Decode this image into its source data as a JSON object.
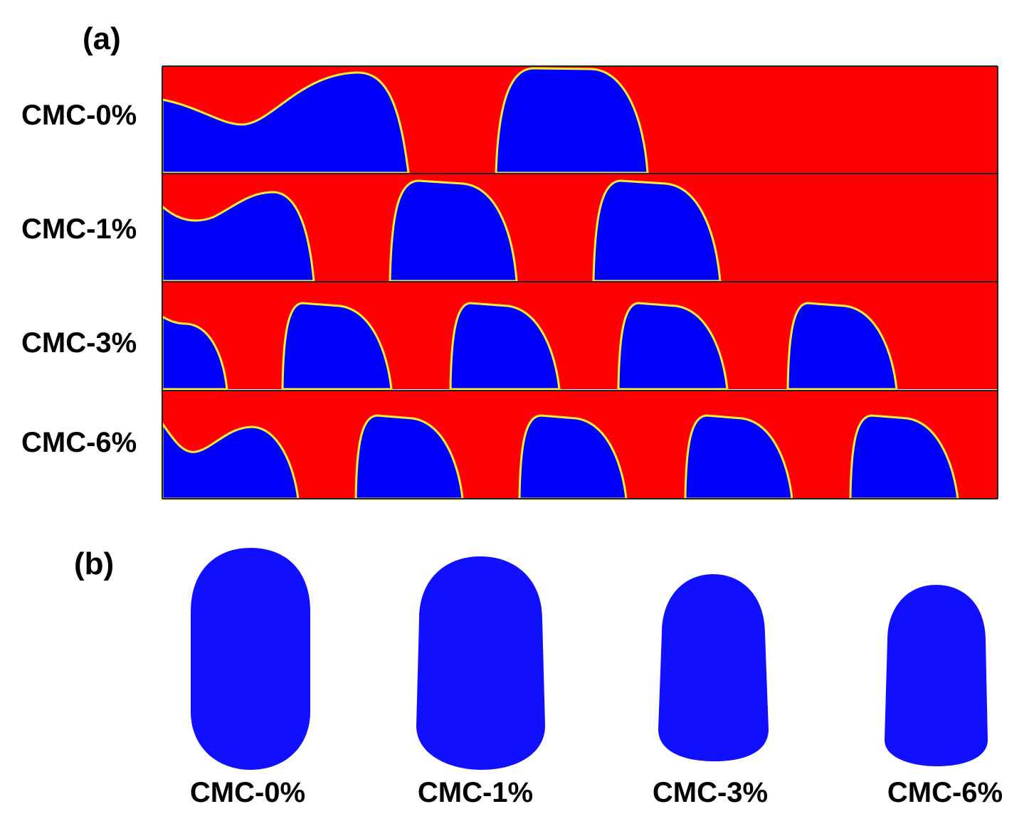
{
  "panels": {
    "a": {
      "label": "(a)"
    },
    "b": {
      "label": "(b)"
    }
  },
  "colors": {
    "liquid": "#ff0000",
    "gas": "#0000ff",
    "interface": "#ffee33",
    "bubble": "#1010ff"
  },
  "rows": [
    {
      "label": "CMC-0%",
      "bubble_count": 2
    },
    {
      "label": "CMC-1%",
      "bubble_count": 3
    },
    {
      "label": "CMC-3%",
      "bubble_count": 5
    },
    {
      "label": "CMC-6%",
      "bubble_count": 5
    }
  ],
  "bottom_labels": [
    "CMC-0%",
    "CMC-1%",
    "CMC-3%",
    "CMC-6%"
  ]
}
